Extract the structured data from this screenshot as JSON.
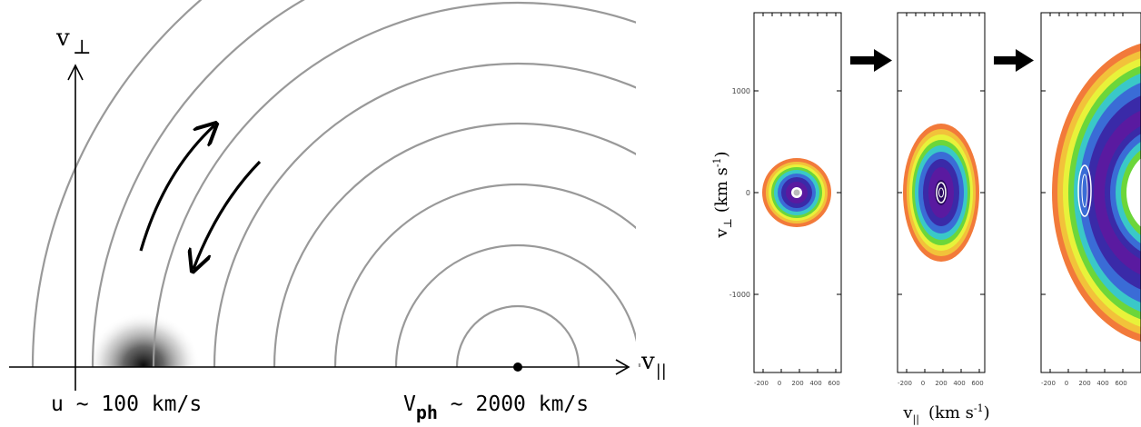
{
  "left_diagram": {
    "axis_v_label": "v",
    "axis_v_sub": "⊥",
    "axis_h_label": "v",
    "axis_h_sub": "||",
    "u_label": "u ~ 100 km/s",
    "vph_label": "V",
    "vph_sub": "ph",
    "vph_value": " ~ 2000 km/s",
    "colors": {
      "arc": "#999999",
      "axis": "#000000"
    },
    "gradient_blob": {
      "label": "thermal-core",
      "color": "#000000"
    }
  },
  "right_panels": {
    "y_ticks": [
      "1000",
      "0",
      "-1000"
    ],
    "x_ticks": [
      "-200",
      "0",
      "200",
      "400",
      "600"
    ],
    "x_ticks_p2": [
      "-200",
      "0",
      "200",
      "400",
      "600"
    ],
    "x_ticks_p3": [
      "-200",
      "0",
      "200",
      "400",
      "600"
    ],
    "ylabel": "v",
    "ylabel_sub": "⊥",
    "ylabel_units": "(km s",
    "ylabel_exp": "-1",
    "ylabel_close": ")",
    "xlabel": "v",
    "xlabel_sub": "||",
    "xlabel_units": "(km s",
    "xlabel_exp": "-1",
    "xlabel_close": ")",
    "colors": [
      "#f27a3a",
      "#f2c23a",
      "#e8f23a",
      "#6cd63a",
      "#3ac8c8",
      "#3a6cd6",
      "#3a2aa8",
      "#5a1aa0",
      "#8a1aa8"
    ]
  }
}
